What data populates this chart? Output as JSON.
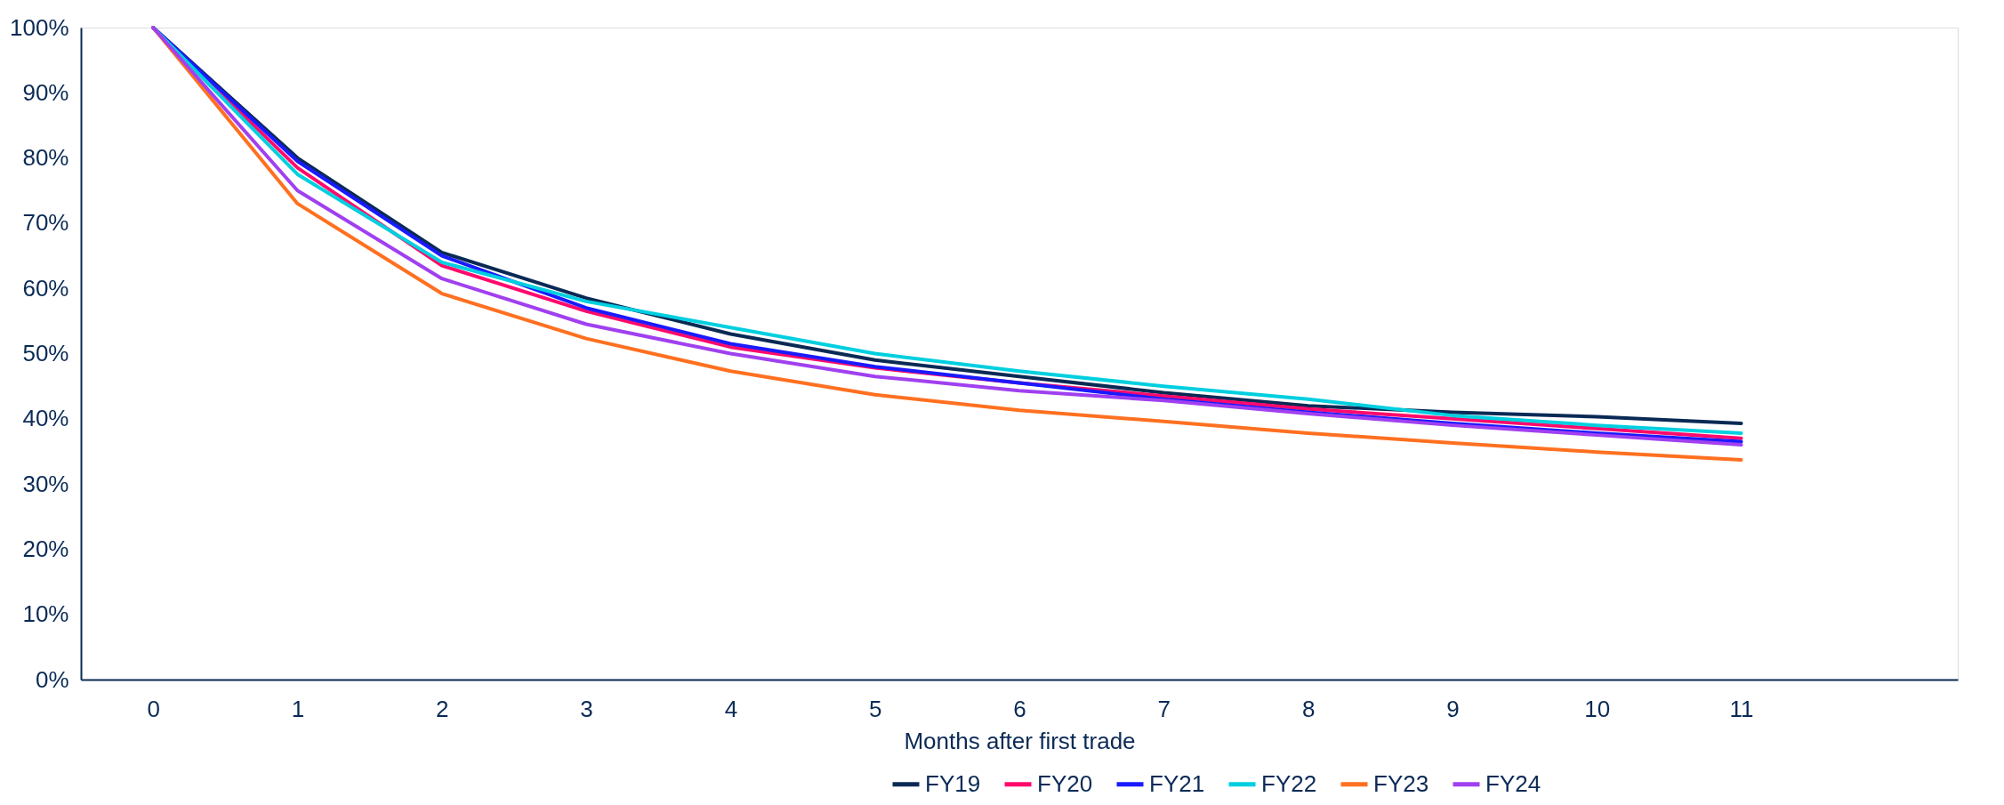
{
  "chart_data": {
    "type": "line",
    "xlabel": "Months after first trade",
    "x": [
      0,
      1,
      2,
      3,
      4,
      5,
      6,
      7,
      8,
      9,
      10,
      11
    ],
    "xlim": [
      -0.5,
      12.5
    ],
    "xticks": [
      0,
      1,
      2,
      3,
      4,
      5,
      6,
      7,
      8,
      9,
      10,
      11
    ],
    "ylim": [
      0,
      100
    ],
    "yticks": [
      {
        "value": 0,
        "label": "0%"
      },
      {
        "value": 10,
        "label": "10%"
      },
      {
        "value": 20,
        "label": "20%"
      },
      {
        "value": 30,
        "label": "30%"
      },
      {
        "value": 40,
        "label": "40%"
      },
      {
        "value": 50,
        "label": "50%"
      },
      {
        "value": 60,
        "label": "60%"
      },
      {
        "value": 70,
        "label": "70%"
      },
      {
        "value": 80,
        "label": "80%"
      },
      {
        "value": 90,
        "label": "90%"
      },
      {
        "value": 100,
        "label": "100%"
      }
    ],
    "grid": false,
    "legend": "bottom",
    "marker": "none",
    "line_style": "solid",
    "series": [
      {
        "name": "FY19",
        "color": "#0a2a55",
        "values": [
          100,
          80,
          65.5,
          58.5,
          53,
          49,
          46.5,
          44,
          42,
          41,
          40.3,
          39.3
        ]
      },
      {
        "name": "FY20",
        "color": "#ff0a6c",
        "values": [
          100,
          78.5,
          63.5,
          56.5,
          51,
          47.8,
          45.5,
          43.5,
          41.5,
          40,
          38.5,
          37
        ]
      },
      {
        "name": "FY21",
        "color": "#1a1aff",
        "values": [
          100,
          79.5,
          65,
          57,
          51.5,
          48,
          45.5,
          43,
          41,
          39.3,
          37.8,
          36.5
        ]
      },
      {
        "name": "FY22",
        "color": "#00cfe0",
        "values": [
          100,
          77.5,
          64,
          58,
          54,
          50,
          47.3,
          45,
          43,
          40.5,
          39,
          37.8
        ]
      },
      {
        "name": "FY23",
        "color": "#ff7020",
        "values": [
          100,
          73,
          59.2,
          52.3,
          47.3,
          43.7,
          41.3,
          39.6,
          37.8,
          36.3,
          34.9,
          33.7
        ]
      },
      {
        "name": "FY24",
        "color": "#a040f0",
        "values": [
          100,
          75,
          61.5,
          54.5,
          50,
          46.5,
          44.3,
          42.8,
          40.8,
          39,
          37.5,
          36
        ]
      }
    ]
  }
}
